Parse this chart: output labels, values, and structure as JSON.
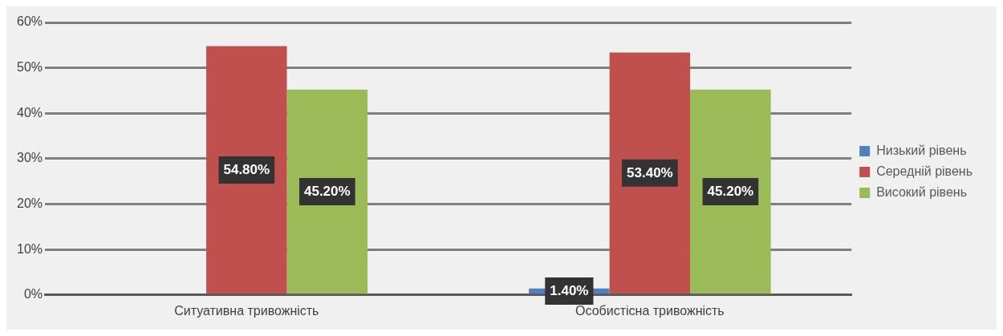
{
  "chart_data": {
    "type": "bar",
    "categories": [
      "Ситуативна тривожність",
      "Особистісна тривожність"
    ],
    "series": [
      {
        "name": "Низький рівень",
        "color": "#4f81bd",
        "values": [
          null,
          1.4
        ],
        "value_labels": [
          null,
          "1.40%"
        ]
      },
      {
        "name": "Середній рівень",
        "color": "#c0504d",
        "values": [
          54.8,
          53.4
        ],
        "value_labels": [
          "54.80%",
          "53.40%"
        ]
      },
      {
        "name": "Високий рівень",
        "color": "#9bbb59",
        "values": [
          45.2,
          45.2
        ],
        "value_labels": [
          "45.20%",
          "45.20%"
        ]
      }
    ],
    "ylim": [
      0,
      60
    ],
    "yticks": [
      {
        "value": 0,
        "label": "0%"
      },
      {
        "value": 10,
        "label": "10%"
      },
      {
        "value": 20,
        "label": "20%"
      },
      {
        "value": 30,
        "label": "30%"
      },
      {
        "value": 40,
        "label": "40%"
      },
      {
        "value": 50,
        "label": "50%"
      },
      {
        "value": 60,
        "label": "60%"
      }
    ],
    "grid": "y",
    "legend": "right"
  }
}
